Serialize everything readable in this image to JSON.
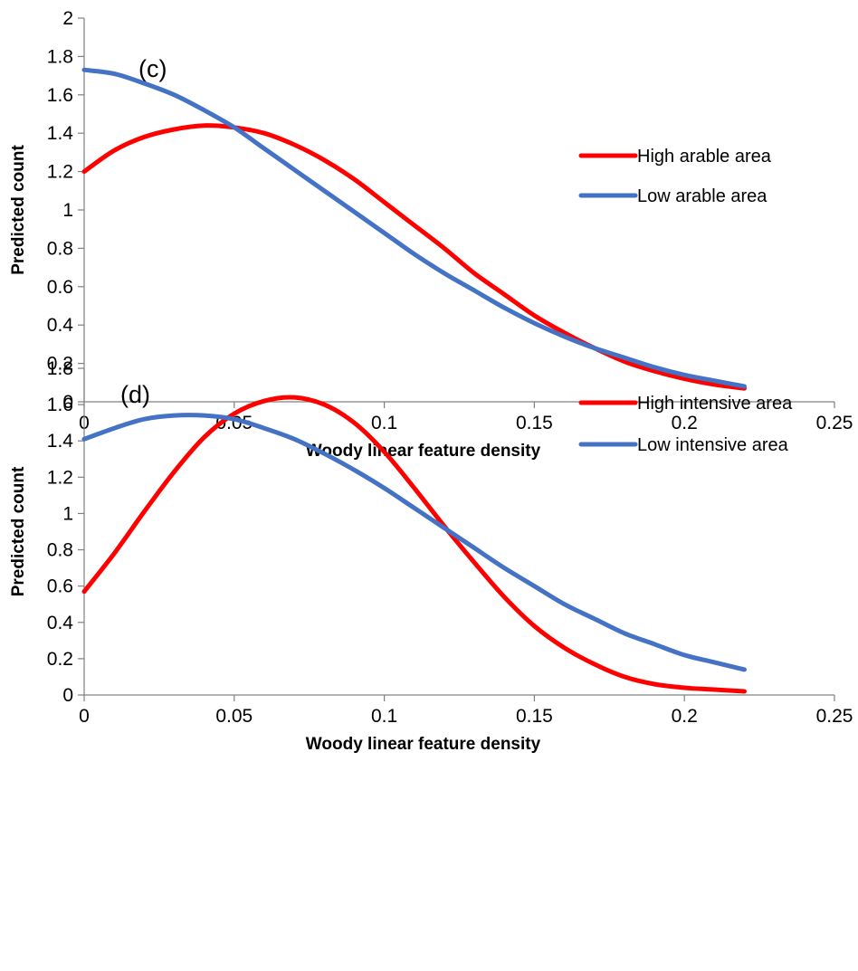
{
  "chart_data": [
    {
      "type": "line",
      "annotation": "(c)",
      "xlabel": "Woody linear feature density",
      "ylabel": "Predicted count",
      "xlim": [
        0,
        0.25
      ],
      "ylim": [
        0,
        2
      ],
      "xticks": [
        "0",
        "0.05",
        "0.1",
        "0.15",
        "0.2",
        "0.25"
      ],
      "yticks": [
        "0",
        "0.2",
        "0.4",
        "0.6",
        "0.8",
        "1",
        "1.2",
        "1.4",
        "1.6",
        "1.8",
        "2"
      ],
      "grid": false,
      "legend_position": "right",
      "x": [
        0,
        0.01,
        0.02,
        0.03,
        0.04,
        0.05,
        0.06,
        0.07,
        0.08,
        0.09,
        0.1,
        0.11,
        0.12,
        0.13,
        0.14,
        0.15,
        0.16,
        0.17,
        0.18,
        0.19,
        0.2,
        0.21,
        0.22
      ],
      "series": [
        {
          "name": "High arable area",
          "color": "#ff0000",
          "values": [
            1.2,
            1.31,
            1.38,
            1.42,
            1.44,
            1.43,
            1.4,
            1.34,
            1.26,
            1.16,
            1.04,
            0.92,
            0.8,
            0.67,
            0.56,
            0.45,
            0.36,
            0.28,
            0.21,
            0.16,
            0.12,
            0.09,
            0.07
          ]
        },
        {
          "name": "Low arable area",
          "color": "#4472c4",
          "values": [
            1.73,
            1.71,
            1.66,
            1.6,
            1.52,
            1.43,
            1.32,
            1.21,
            1.1,
            0.99,
            0.88,
            0.77,
            0.67,
            0.58,
            0.49,
            0.41,
            0.34,
            0.28,
            0.23,
            0.18,
            0.14,
            0.11,
            0.08
          ]
        }
      ]
    },
    {
      "type": "line",
      "annotation": "(d)",
      "xlabel": "Woody linear feature density",
      "ylabel": "Predicted count",
      "xlim": [
        0,
        0.25
      ],
      "ylim": [
        0,
        1.8
      ],
      "xticks": [
        "0",
        "0.05",
        "0.1",
        "0.15",
        "0.2",
        "0.25"
      ],
      "yticks": [
        "0",
        "0.2",
        "0.4",
        "0.6",
        "0.8",
        "1",
        "1.2",
        "1.4",
        "1.6",
        "1.8"
      ],
      "grid": false,
      "legend_position": "right",
      "x": [
        0,
        0.01,
        0.02,
        0.03,
        0.04,
        0.05,
        0.06,
        0.07,
        0.08,
        0.09,
        0.1,
        0.11,
        0.12,
        0.13,
        0.14,
        0.15,
        0.16,
        0.17,
        0.18,
        0.19,
        0.2,
        0.21,
        0.22
      ],
      "series": [
        {
          "name": "High intensive area",
          "color": "#ff0000",
          "values": [
            0.57,
            0.78,
            1.01,
            1.23,
            1.42,
            1.55,
            1.62,
            1.64,
            1.6,
            1.5,
            1.34,
            1.14,
            0.93,
            0.73,
            0.54,
            0.38,
            0.26,
            0.17,
            0.1,
            0.06,
            0.04,
            0.03,
            0.02
          ]
        },
        {
          "name": "Low intensive area",
          "color": "#4472c4",
          "values": [
            1.41,
            1.47,
            1.52,
            1.54,
            1.54,
            1.52,
            1.47,
            1.41,
            1.33,
            1.24,
            1.14,
            1.03,
            0.92,
            0.81,
            0.7,
            0.6,
            0.5,
            0.42,
            0.34,
            0.28,
            0.22,
            0.18,
            0.14
          ]
        }
      ]
    }
  ]
}
